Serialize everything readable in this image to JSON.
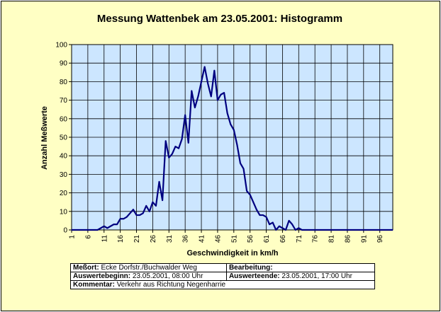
{
  "chart_data": {
    "type": "line",
    "title": "Messung Wattenbek am 23.05.2001:  Histogramm",
    "xlabel": "Geschwindigkeit in km/h",
    "ylabel": "Anzahl Meßwerte",
    "ylim": [
      0,
      100
    ],
    "xlim": [
      1,
      100
    ],
    "yticks": [
      0,
      10,
      20,
      30,
      40,
      50,
      60,
      70,
      80,
      90,
      100
    ],
    "xticks": [
      1,
      6,
      11,
      16,
      21,
      26,
      31,
      36,
      41,
      46,
      51,
      56,
      61,
      66,
      71,
      76,
      81,
      86,
      91,
      96
    ],
    "grid": true,
    "legend": "none",
    "colors": {
      "plot_background": "#cce6ff",
      "line": "#000080",
      "grid": "#000000",
      "page_background": "#ffffc4"
    },
    "series": [
      {
        "x": [
          1,
          2,
          3,
          4,
          5,
          6,
          7,
          8,
          9,
          10,
          11,
          12,
          13,
          14,
          15,
          16,
          17,
          18,
          19,
          20,
          21,
          22,
          23,
          24,
          25,
          26,
          27,
          28,
          29,
          30,
          31,
          32,
          33,
          34,
          35,
          36,
          37,
          38,
          39,
          40,
          41,
          42,
          43,
          44,
          45,
          46,
          47,
          48,
          49,
          50,
          51,
          52,
          53,
          54,
          55,
          56,
          57,
          58,
          59,
          60,
          61,
          62,
          63,
          64,
          65,
          66,
          67,
          68,
          69,
          70,
          71,
          72,
          73,
          74,
          75,
          76,
          77,
          78,
          79,
          80,
          81,
          82,
          83,
          84,
          85,
          86,
          87,
          88,
          89,
          90,
          91,
          92,
          93,
          94,
          95,
          96,
          97,
          98,
          99,
          100
        ],
        "values": [
          0,
          0,
          0,
          0,
          0,
          0,
          0,
          0,
          0,
          1,
          2,
          1,
          2,
          3,
          3,
          6,
          6,
          7,
          9,
          11,
          8,
          8,
          9,
          13,
          10,
          15,
          13,
          26,
          16,
          48,
          39,
          41,
          45,
          44,
          49,
          62,
          47,
          75,
          66,
          72,
          80,
          88,
          79,
          72,
          86,
          70,
          73,
          74,
          63,
          57,
          54,
          46,
          36,
          33,
          21,
          19,
          15,
          11,
          8,
          8,
          7,
          3,
          4,
          0,
          2,
          1,
          0,
          5,
          3,
          0,
          1,
          0,
          0,
          0,
          0,
          0,
          0,
          0,
          0,
          0,
          0,
          0,
          0,
          0,
          0,
          0,
          0,
          0,
          0,
          0,
          0,
          0,
          0,
          0,
          0,
          0,
          0,
          0,
          0,
          0
        ]
      }
    ]
  },
  "info": {
    "messort_label": "Meßort:",
    "messort_value": "Ecke  Dorfstr./Buchwalder Weg",
    "bearbeitung_label": "Bearbeitung:",
    "bearbeitung_value": "",
    "auswertebeginn_label": "Auswertebeginn:",
    "auswertebeginn_value": "23.05.2001, 08:00 Uhr",
    "auswerteende_label": "Auswerteende:",
    "auswerteende_value": "23.05.2001, 17:00 Uhr",
    "kommentar_label": "Kommentar:",
    "kommentar_value": "Verkehr aus Richtung Negenharrie"
  }
}
